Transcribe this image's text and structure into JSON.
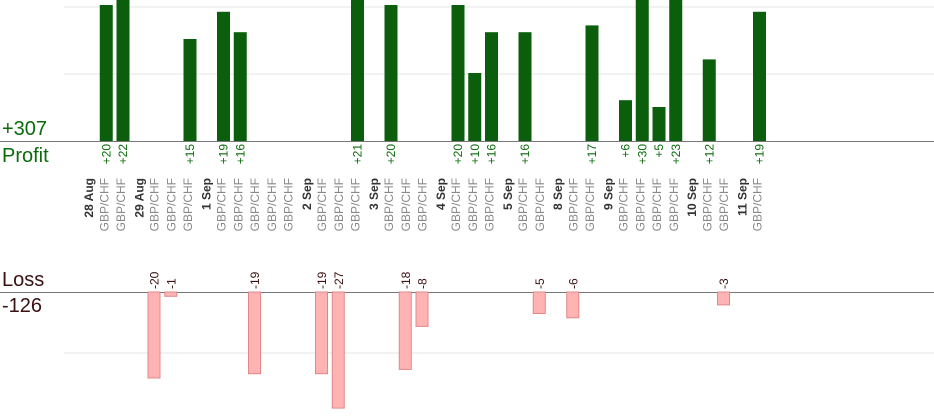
{
  "summary": {
    "profit_value": "+307",
    "profit_label": "Profit",
    "loss_label": "Loss",
    "loss_value": "-126"
  },
  "colors": {
    "profit_bar": "#0b5e0b",
    "profit_text": "#0b6b0b",
    "loss_bar": "#ffb3b3",
    "loss_bar_stroke": "#e08888",
    "loss_text": "#3a1010",
    "date_text": "#333333",
    "pair_text": "#888888",
    "axis": "#777777",
    "grid": "#e6e6e6"
  },
  "chart_data": {
    "type": "bar",
    "pair": "GBP/CHF",
    "days": [
      {
        "date": "28 Aug",
        "trades": [
          "+20",
          "+22"
        ]
      },
      {
        "date": "29 Aug",
        "trades": [
          "-20",
          "-1",
          "+15"
        ]
      },
      {
        "date": "1 Sep",
        "trades": [
          "+19",
          "+16",
          "-19",
          null,
          null
        ]
      },
      {
        "date": "2 Sep",
        "trades": [
          "-19",
          "-27",
          "+21"
        ]
      },
      {
        "date": "3 Sep",
        "trades": [
          "+20",
          "-18",
          "-8"
        ]
      },
      {
        "date": "4 Sep",
        "trades": [
          "+20",
          "+10",
          "+16"
        ]
      },
      {
        "date": "5 Sep",
        "trades": [
          "+16",
          "-5"
        ]
      },
      {
        "date": "8 Sep",
        "trades": [
          "-6",
          "+17"
        ]
      },
      {
        "date": "9 Sep",
        "trades": [
          "+6",
          "+30",
          "+5",
          "+23"
        ]
      },
      {
        "date": "10 Sep",
        "trades": [
          "+12",
          "-3"
        ]
      },
      {
        "date": "11 Sep",
        "trades": [
          "+19"
        ]
      }
    ],
    "totals": {
      "profit": 307,
      "loss": -126
    }
  }
}
